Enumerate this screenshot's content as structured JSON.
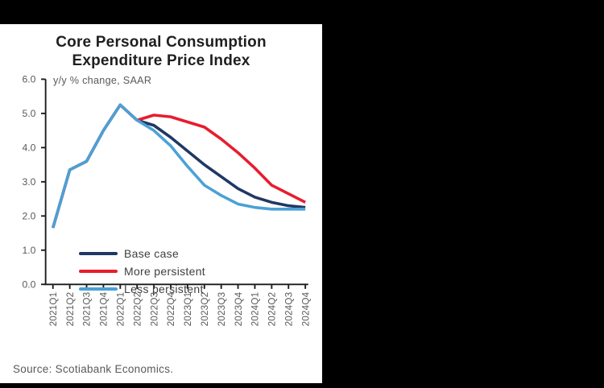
{
  "window": {
    "background_color": "#000000",
    "panel_color": "#ffffff"
  },
  "chart": {
    "title": "Core Personal Consumption\nExpenditure Price Index",
    "subtitle": "y/y % change, SAAR",
    "source": "Source: Scotiabank Economics."
  },
  "chart_data": {
    "type": "line",
    "title": "Core Personal Consumption Expenditure Price Index",
    "subtitle": "y/y % change, SAAR",
    "categories": [
      "2021Q1",
      "2021Q2",
      "2021Q3",
      "2021Q4",
      "2022Q1",
      "2022Q2",
      "2022Q3",
      "2022Q4",
      "2023Q1",
      "2023Q2",
      "2023Q3",
      "2023Q4",
      "2024Q1",
      "2024Q2",
      "2024Q3",
      "2024Q4"
    ],
    "series": [
      {
        "name": "Base case",
        "color": "#1f3864",
        "values": [
          1.65,
          3.35,
          3.6,
          4.5,
          5.25,
          4.8,
          4.65,
          4.3,
          3.9,
          3.5,
          3.15,
          2.8,
          2.55,
          2.4,
          2.3,
          2.25
        ]
      },
      {
        "name": "More persistent",
        "color": "#e81c2d",
        "values": [
          1.65,
          3.35,
          3.6,
          4.5,
          5.25,
          4.8,
          4.95,
          4.9,
          4.75,
          4.6,
          4.25,
          3.85,
          3.4,
          2.9,
          2.65,
          2.4
        ]
      },
      {
        "name": "Less persistent",
        "color": "#4ba1d6",
        "values": [
          1.65,
          3.35,
          3.6,
          4.5,
          5.25,
          4.8,
          4.5,
          4.05,
          3.45,
          2.9,
          2.6,
          2.35,
          2.25,
          2.2,
          2.2,
          2.2
        ]
      }
    ],
    "ylim": [
      0.0,
      6.0
    ],
    "y_ticks": [
      "0.0",
      "1.0",
      "2.0",
      "3.0",
      "4.0",
      "5.0",
      "6.0"
    ],
    "grid": false,
    "legend_position": "inside-bottom-left",
    "x_label_rotation_deg": 90,
    "axis_color": "#1a1a1a",
    "tick_label_color": "#595959",
    "source": "Source: Scotiabank Economics."
  }
}
